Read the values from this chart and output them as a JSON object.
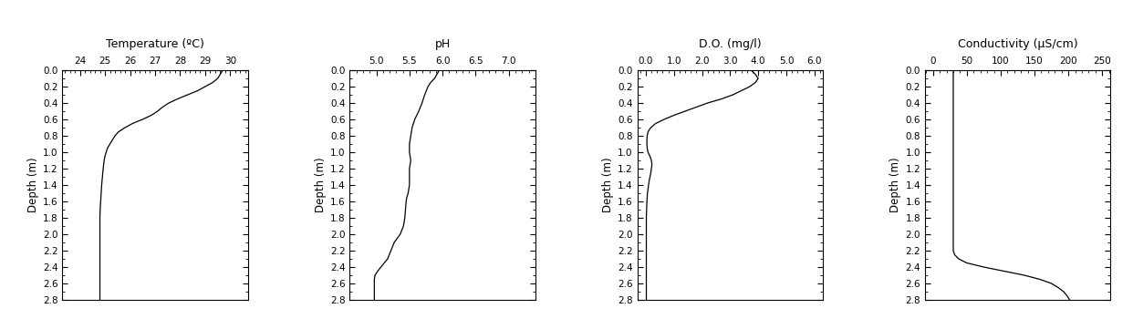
{
  "temp": {
    "title": "Temperature (ºC)",
    "xlabel_ticks": [
      24,
      25,
      26,
      27,
      28,
      29,
      30
    ],
    "xlim": [
      23.3,
      30.7
    ],
    "depth": [
      0.0,
      0.05,
      0.1,
      0.15,
      0.2,
      0.25,
      0.3,
      0.35,
      0.4,
      0.45,
      0.5,
      0.55,
      0.6,
      0.65,
      0.7,
      0.75,
      0.8,
      0.85,
      0.9,
      0.95,
      1.0,
      1.05,
      1.1,
      1.2,
      1.3,
      1.4,
      1.5,
      1.6,
      1.65,
      1.7,
      1.8,
      1.9,
      2.0,
      2.2,
      2.4,
      2.6,
      2.8
    ],
    "values": [
      29.7,
      29.6,
      29.5,
      29.3,
      29.0,
      28.7,
      28.3,
      27.9,
      27.55,
      27.3,
      27.1,
      26.85,
      26.5,
      26.1,
      25.8,
      25.55,
      25.4,
      25.3,
      25.2,
      25.1,
      25.05,
      25.0,
      24.97,
      24.93,
      24.9,
      24.87,
      24.85,
      24.83,
      24.82,
      24.81,
      24.8,
      24.8,
      24.8,
      24.8,
      24.8,
      24.8,
      24.8
    ]
  },
  "ph": {
    "title": "pH",
    "xlabel_ticks": [
      5.0,
      5.5,
      6.0,
      6.5,
      7.0
    ],
    "xlim": [
      4.6,
      7.4
    ],
    "depth": [
      0.0,
      0.1,
      0.15,
      0.2,
      0.3,
      0.4,
      0.5,
      0.6,
      0.7,
      0.8,
      0.9,
      1.0,
      1.05,
      1.1,
      1.15,
      1.2,
      1.3,
      1.4,
      1.45,
      1.5,
      1.55,
      1.6,
      1.7,
      1.8,
      1.9,
      2.0,
      2.1,
      2.2,
      2.3,
      2.35,
      2.4,
      2.45,
      2.5,
      2.55,
      2.6,
      2.65,
      2.7,
      2.75,
      2.8
    ],
    "values": [
      5.95,
      5.88,
      5.82,
      5.78,
      5.73,
      5.69,
      5.64,
      5.58,
      5.54,
      5.52,
      5.5,
      5.5,
      5.51,
      5.52,
      5.51,
      5.5,
      5.5,
      5.5,
      5.49,
      5.48,
      5.46,
      5.45,
      5.44,
      5.43,
      5.41,
      5.36,
      5.27,
      5.22,
      5.17,
      5.12,
      5.07,
      5.02,
      4.98,
      4.97,
      4.97,
      4.97,
      4.97,
      4.97,
      4.97
    ]
  },
  "do": {
    "title": "D.O. (mg/l)",
    "xlabel_ticks": [
      0.0,
      1.0,
      2.0,
      3.0,
      4.0,
      5.0,
      6.0
    ],
    "xlim": [
      -0.3,
      6.3
    ],
    "depth": [
      0.0,
      0.05,
      0.1,
      0.15,
      0.2,
      0.25,
      0.3,
      0.35,
      0.4,
      0.45,
      0.5,
      0.55,
      0.6,
      0.65,
      0.7,
      0.75,
      0.8,
      0.85,
      0.9,
      0.95,
      1.0,
      1.05,
      1.1,
      1.15,
      1.2,
      1.25,
      1.3,
      1.35,
      1.4,
      1.45,
      1.5,
      1.6,
      1.7,
      1.8,
      2.0,
      2.2,
      2.4,
      2.6,
      2.8
    ],
    "values": [
      3.75,
      3.9,
      4.0,
      3.9,
      3.7,
      3.4,
      3.1,
      2.7,
      2.2,
      1.8,
      1.4,
      1.0,
      0.65,
      0.35,
      0.18,
      0.08,
      0.05,
      0.04,
      0.04,
      0.05,
      0.08,
      0.15,
      0.2,
      0.22,
      0.2,
      0.18,
      0.15,
      0.12,
      0.1,
      0.08,
      0.06,
      0.04,
      0.03,
      0.02,
      0.02,
      0.02,
      0.02,
      0.02,
      0.02
    ]
  },
  "cond": {
    "title": "Conductivity (μS/cm)",
    "xlabel_ticks": [
      0,
      50,
      100,
      150,
      200,
      250
    ],
    "xlim": [
      -12,
      262
    ],
    "depth": [
      0.0,
      0.1,
      0.2,
      0.3,
      0.5,
      0.8,
      1.0,
      1.2,
      1.4,
      1.6,
      1.8,
      2.0,
      2.1,
      2.2,
      2.25,
      2.3,
      2.35,
      2.4,
      2.45,
      2.5,
      2.55,
      2.6,
      2.65,
      2.7,
      2.75,
      2.8
    ],
    "values": [
      30,
      30,
      30,
      30,
      30,
      30,
      30,
      30,
      30,
      30,
      30,
      30,
      30,
      30,
      32,
      38,
      50,
      75,
      105,
      135,
      158,
      175,
      185,
      193,
      198,
      202
    ]
  },
  "ylim": [
    2.8,
    0.0
  ],
  "yticks": [
    0.0,
    0.2,
    0.4,
    0.6,
    0.8,
    1.0,
    1.2,
    1.4,
    1.6,
    1.8,
    2.0,
    2.2,
    2.4,
    2.6,
    2.8
  ],
  "ylabel": "Depth (m)",
  "line_color": "black",
  "line_width": 0.9,
  "bg_color": "white",
  "tick_fontsize": 7.5,
  "title_fontsize": 9,
  "ylabel_fontsize": 8.5
}
